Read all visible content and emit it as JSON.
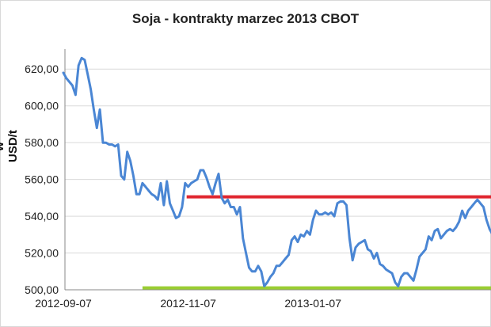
{
  "chart_data": {
    "type": "line",
    "title": "Soja - kontrakty marzec 2013 CBOT",
    "ylabel": "w USD/t",
    "ylim": [
      500,
      630
    ],
    "yticks": [
      "500,00",
      "520,00",
      "540,00",
      "560,00",
      "580,00",
      "600,00",
      "620,00"
    ],
    "ytick_values": [
      500,
      520,
      540,
      560,
      580,
      600,
      620
    ],
    "xticks": [
      "2012-09-07",
      "2012-11-07",
      "2013-01-07"
    ],
    "grid": true,
    "colors": {
      "line": "#4a86d4",
      "resistance": "#e0262f",
      "support": "#9acd32",
      "grid": "#d9d9d9"
    },
    "series": [
      {
        "values": [
          618,
          615,
          613,
          611,
          606,
          622,
          626,
          625,
          617,
          609,
          598,
          588,
          598,
          580,
          580,
          579,
          579,
          578,
          579,
          562,
          560,
          575,
          570,
          562,
          552,
          552,
          558,
          556,
          554,
          552,
          551,
          549,
          558,
          546,
          559,
          547,
          543,
          539,
          540,
          545,
          558,
          556,
          558,
          559,
          560,
          565,
          565,
          561,
          556,
          552,
          558,
          563,
          550,
          547,
          549,
          545,
          545,
          541,
          545,
          528,
          520,
          512,
          510,
          510,
          513,
          510,
          502,
          504,
          507,
          509,
          513,
          513,
          515,
          517,
          519,
          527,
          529,
          526,
          530,
          529,
          532,
          530,
          538,
          543,
          541,
          541,
          542,
          541,
          542,
          540,
          547,
          548,
          548,
          546,
          528,
          516,
          523,
          525,
          526,
          527,
          522,
          521,
          517,
          520,
          514,
          513,
          511,
          510,
          509,
          504,
          502,
          507,
          509,
          509,
          507,
          505,
          511,
          518,
          520,
          522,
          529,
          527,
          532,
          533,
          528,
          530,
          532,
          533,
          532,
          534,
          537,
          543,
          539,
          543,
          545,
          547,
          549,
          547,
          545,
          538,
          533,
          530
        ]
      }
    ],
    "reference_lines": [
      {
        "name": "resistance",
        "value": 550.5,
        "from_index": 40.5,
        "to_index": 141
      },
      {
        "name": "support",
        "value": 501,
        "from_index": 26,
        "to_index": 141
      }
    ]
  }
}
